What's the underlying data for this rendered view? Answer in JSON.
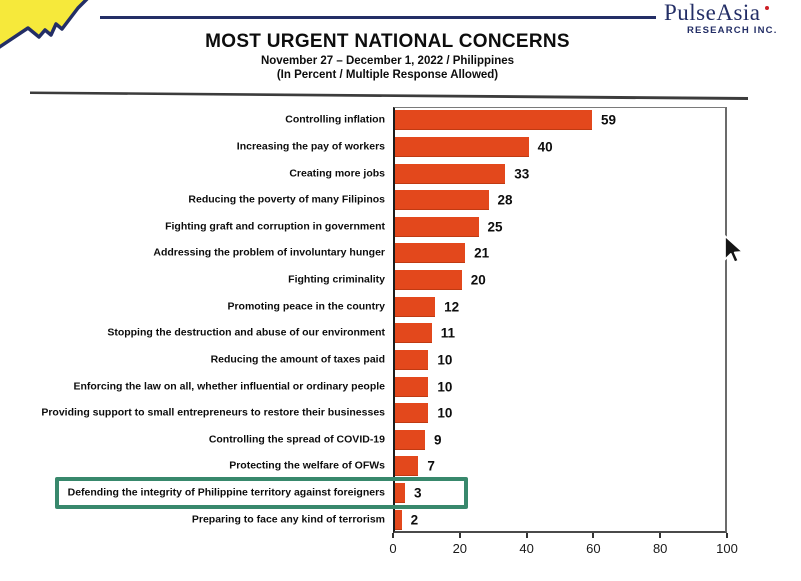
{
  "brand": {
    "name": "PulseAsia",
    "subtitle": "RESEARCH INC.",
    "color": "#232e66",
    "accent_dot_color": "#cc2026",
    "logo_yellow": "#f6e93b"
  },
  "title_block": {
    "title": "MOST URGENT NATIONAL CONCERNS",
    "subtitle_line1": "November 27 – December 1, 2022 / Philippines",
    "subtitle_line2": "(In Percent / Multiple Response Allowed)"
  },
  "chart_data": {
    "type": "bar",
    "orientation": "horizontal",
    "title": "MOST URGENT NATIONAL CONCERNS",
    "subtitle": "November 27 – December 1, 2022 / Philippines (In Percent / Multiple Response Allowed)",
    "categories": [
      "Controlling inflation",
      "Increasing the pay of workers",
      "Creating more jobs",
      "Reducing the poverty of many Filipinos",
      "Fighting graft and corruption in government",
      "Addressing the problem of involuntary hunger",
      "Fighting criminality",
      "Promoting peace in the country",
      "Stopping the destruction and abuse of our environment",
      "Reducing the amount of taxes paid",
      "Enforcing the law on all, whether influential or ordinary people",
      "Providing support to small entrepreneurs to restore their businesses",
      "Controlling the spread of COVID-19",
      "Protecting the welfare of OFWs",
      "Defending the integrity of Philippine territory against foreigners",
      "Preparing to face any kind of terrorism"
    ],
    "values": [
      59,
      40,
      33,
      28,
      25,
      21,
      20,
      12,
      11,
      10,
      10,
      10,
      9,
      7,
      3,
      2
    ],
    "xlim": [
      0,
      100
    ],
    "x_ticks": [
      0,
      20,
      40,
      60,
      80,
      100
    ],
    "bar_color": "#e3481c",
    "grid": false,
    "legend": false,
    "highlight": {
      "category": "Defending the integrity of Philippine territory against foreigners",
      "index": 14,
      "box_color": "#38886c"
    }
  }
}
